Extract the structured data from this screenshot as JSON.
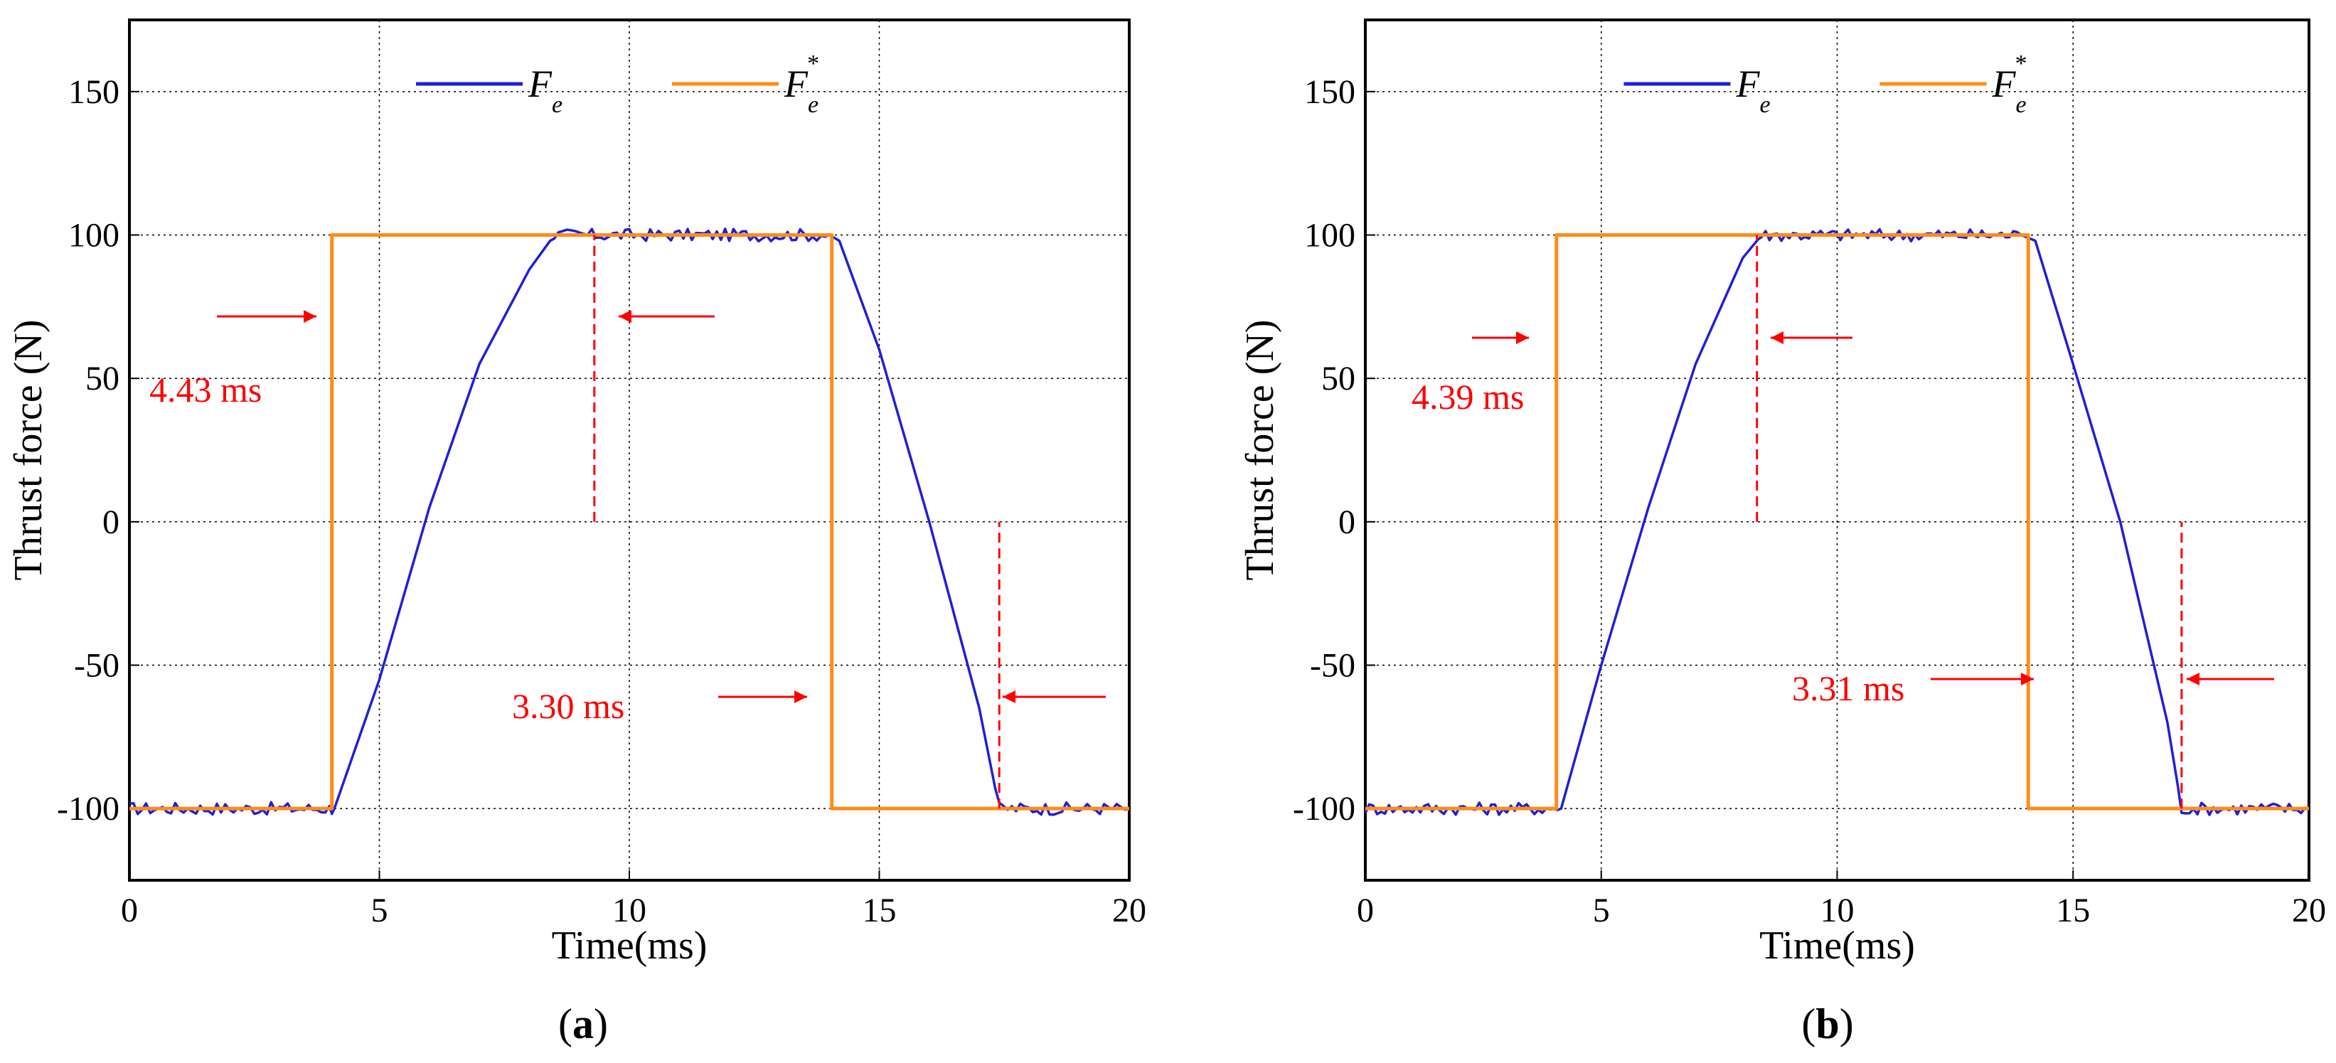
{
  "figure": {
    "panels": [
      {
        "caption_letter": "a",
        "annotations": [
          {
            "text": "4.43 ms",
            "kind": "rise"
          },
          {
            "text": "3.30 ms",
            "kind": "fall"
          }
        ]
      },
      {
        "caption_letter": "b",
        "annotations": [
          {
            "text": "4.39 ms",
            "kind": "rise"
          },
          {
            "text": "3.31 ms",
            "kind": "fall"
          }
        ]
      }
    ]
  },
  "chart_data": [
    {
      "type": "line",
      "panel": "(a)",
      "xlabel": "Time(ms)",
      "ylabel": "Thrust force (N)",
      "xlim": [
        0,
        20
      ],
      "ylim": [
        -125,
        175
      ],
      "xticks": [
        "0",
        "5",
        "10",
        "15",
        "20"
      ],
      "yticks": [
        "-100",
        "-50",
        "0",
        "50",
        "100",
        "150"
      ],
      "grid": true,
      "legend_position": "top-center",
      "series": [
        {
          "name": "F_e",
          "legend_main": "F",
          "legend_sub": "e",
          "legend_sup": "",
          "color": "#1f1fd8",
          "x": [
            0,
            4.0,
            4.1,
            5.0,
            6.0,
            7.0,
            8.0,
            8.5,
            14.0,
            14.2,
            15.0,
            16.0,
            17.0,
            17.4,
            20
          ],
          "y": [
            -100,
            -100,
            -100,
            -55,
            5,
            55,
            88,
            100,
            100,
            98,
            60,
            0,
            -65,
            -100,
            -100
          ]
        },
        {
          "name": "F_e*",
          "legend_main": "F",
          "legend_sub": "e",
          "legend_sup": "*",
          "color": "#ff8c1a",
          "x": [
            0,
            4.05,
            4.05,
            14.05,
            14.05,
            20
          ],
          "y": [
            -100,
            -100,
            100,
            100,
            -100,
            -100
          ]
        }
      ],
      "markers": [
        {
          "x": 9.3,
          "y_from": 0,
          "y_to": 100,
          "label": "4.43 ms"
        },
        {
          "x": 17.4,
          "y_from": -100,
          "y_to": 0,
          "label": "3.30 ms"
        }
      ]
    },
    {
      "type": "line",
      "panel": "(b)",
      "xlabel": "Time(ms)",
      "ylabel": "Thrust force (N)",
      "xlim": [
        0,
        20
      ],
      "ylim": [
        -125,
        175
      ],
      "xticks": [
        "0",
        "5",
        "10",
        "15",
        "20"
      ],
      "yticks": [
        "-100",
        "-50",
        "0",
        "50",
        "100",
        "150"
      ],
      "grid": true,
      "legend_position": "top-center",
      "series": [
        {
          "name": "F_e",
          "legend_main": "F",
          "legend_sub": "e",
          "legend_sup": "",
          "color": "#1f1fd8",
          "x": [
            0,
            4.0,
            4.15,
            5.0,
            6.0,
            7.0,
            8.0,
            8.4,
            13.9,
            14.2,
            15.0,
            16.0,
            17.0,
            17.3,
            20
          ],
          "y": [
            -100,
            -100,
            -100,
            -50,
            5,
            55,
            92,
            100,
            100,
            98,
            55,
            0,
            -70,
            -100,
            -100
          ]
        },
        {
          "name": "F_e*",
          "legend_main": "F",
          "legend_sub": "e",
          "legend_sup": "*",
          "color": "#ff8c1a",
          "x": [
            0,
            4.05,
            4.05,
            14.05,
            14.05,
            20
          ],
          "y": [
            -100,
            -100,
            100,
            100,
            -100,
            -100
          ]
        }
      ],
      "markers": [
        {
          "x": 8.3,
          "y_from": 0,
          "y_to": 100,
          "label": "4.39 ms"
        },
        {
          "x": 17.3,
          "y_from": -100,
          "y_to": 0,
          "label": "3.31 ms"
        }
      ]
    }
  ]
}
